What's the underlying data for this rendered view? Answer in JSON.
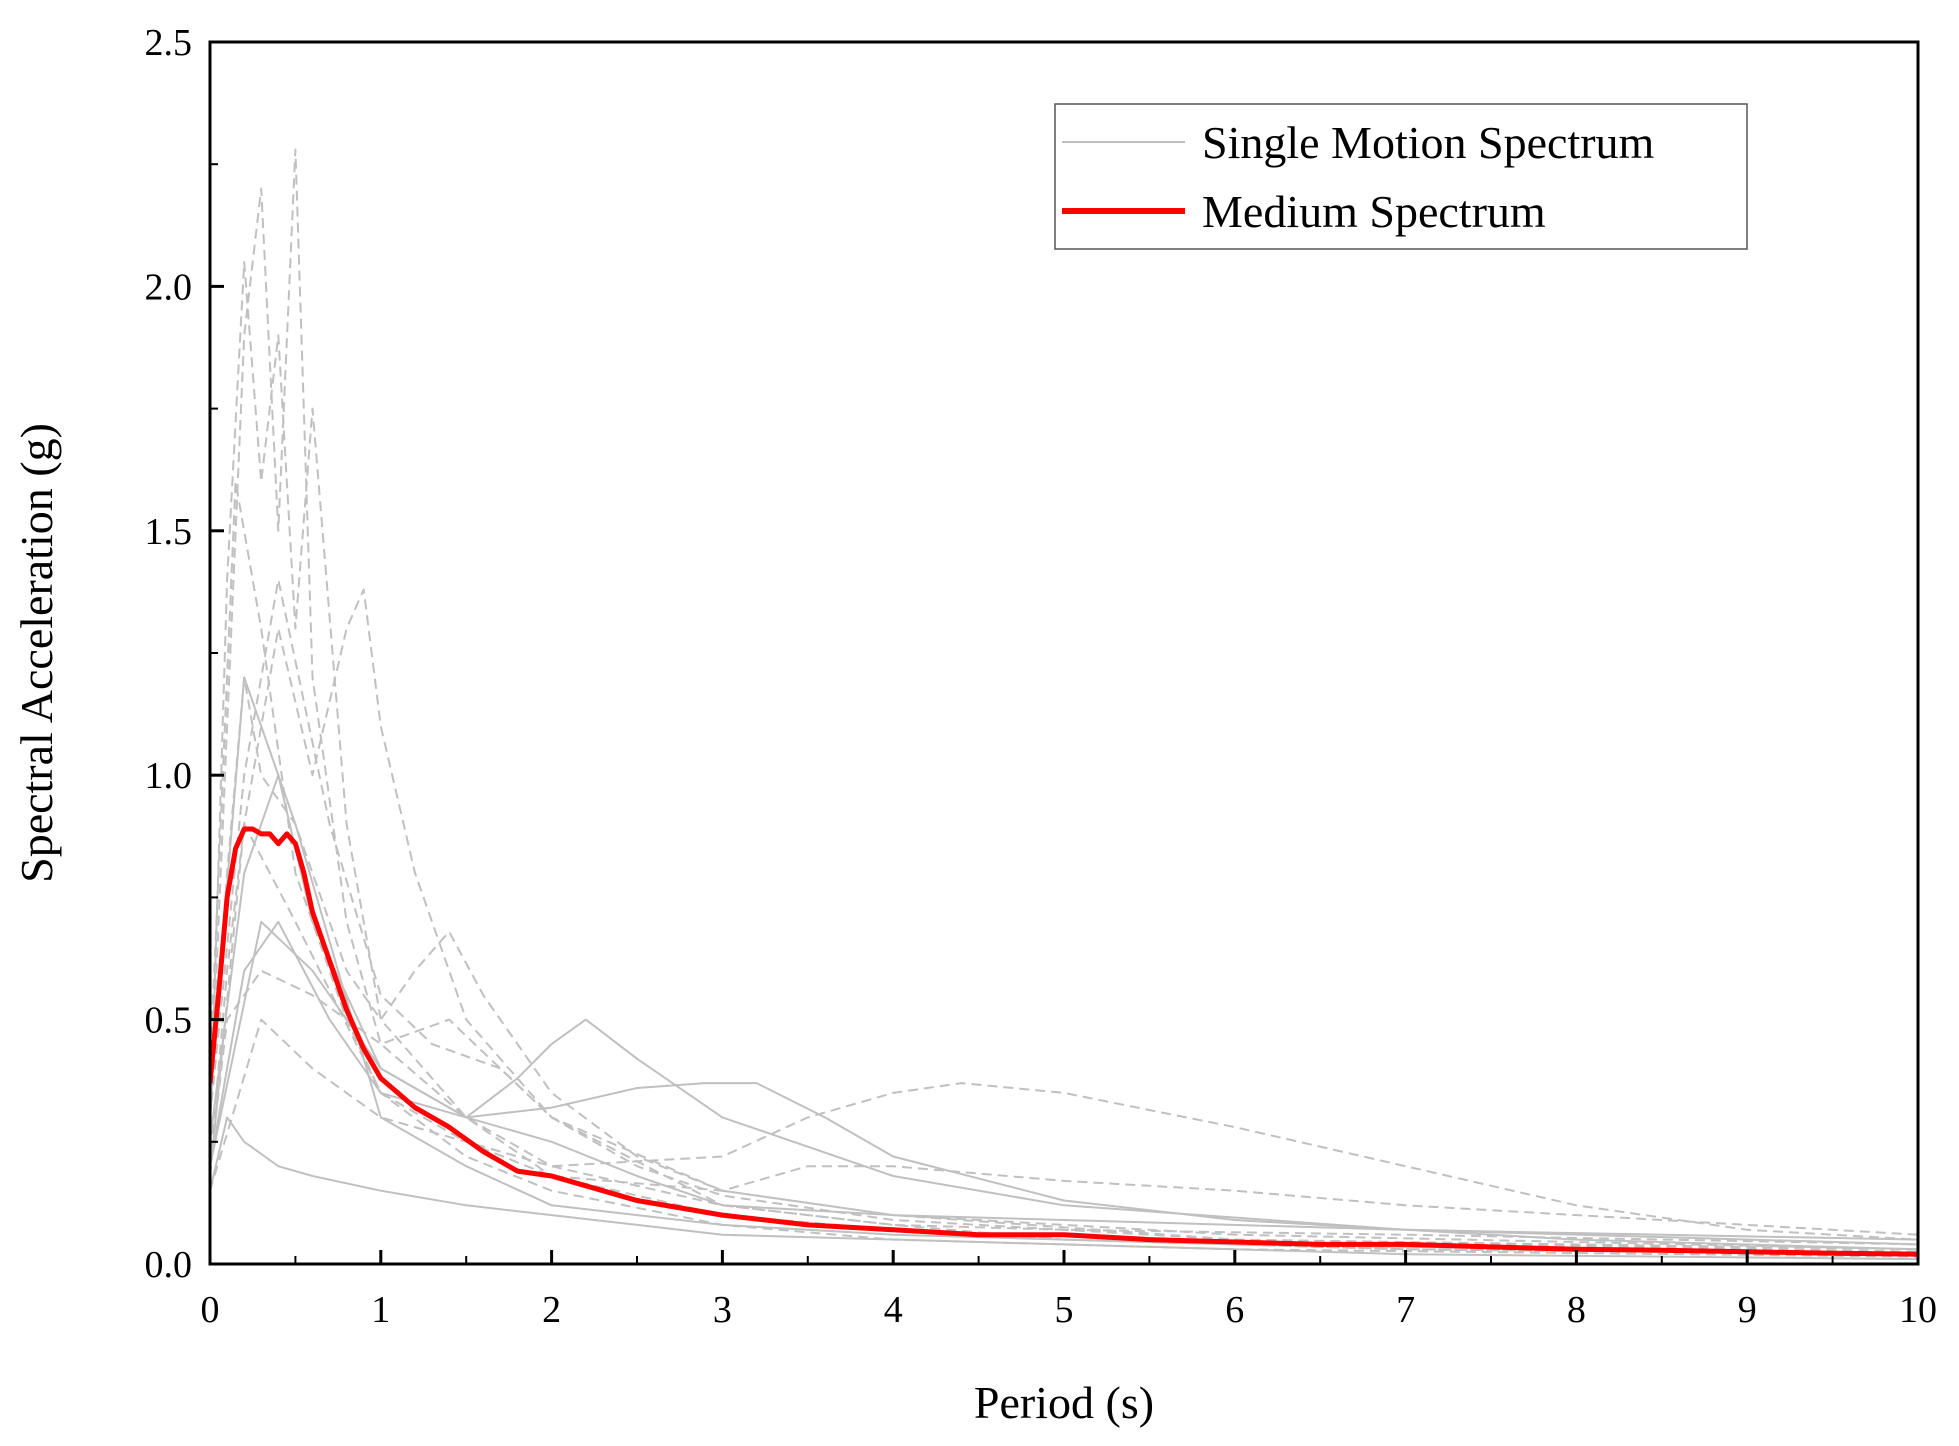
{
  "chart_data": {
    "type": "line",
    "title": "",
    "xlabel": "Period (s)",
    "ylabel": "Spectral Acceleration (g)",
    "xlim": [
      0,
      10
    ],
    "ylim": [
      0,
      2.5
    ],
    "x_ticks": [
      0,
      1,
      2,
      3,
      4,
      5,
      6,
      7,
      8,
      9,
      10
    ],
    "x_tick_labels": [
      "0",
      "1",
      "2",
      "3",
      "4",
      "5",
      "6",
      "7",
      "8",
      "9",
      "10"
    ],
    "y_ticks": [
      0,
      0.5,
      1.0,
      1.5,
      2.0,
      2.5
    ],
    "y_tick_labels": [
      "0.0",
      "0.5",
      "1.0",
      "1.5",
      "2.0",
      "2.5"
    ],
    "grid": false,
    "legend_position": "top-right",
    "legend": [
      {
        "label": "Single Motion Spectrum",
        "color": "#c0c0c0"
      },
      {
        "label": "Medium Spectrum",
        "color": "#ff0000"
      }
    ],
    "series": [
      {
        "name": "Medium Spectrum",
        "color": "#ff0000",
        "style": "solid",
        "x": [
          0,
          0.05,
          0.1,
          0.15,
          0.2,
          0.25,
          0.3,
          0.35,
          0.4,
          0.45,
          0.5,
          0.55,
          0.6,
          0.7,
          0.8,
          0.9,
          1.0,
          1.1,
          1.2,
          1.4,
          1.6,
          1.8,
          2.0,
          2.2,
          2.5,
          3.0,
          3.5,
          4.0,
          4.5,
          5.0,
          5.5,
          6.0,
          6.5,
          7.0,
          7.5,
          8.0,
          8.5,
          9.0,
          9.5,
          10.0
        ],
        "y": [
          0.37,
          0.55,
          0.75,
          0.85,
          0.89,
          0.89,
          0.88,
          0.88,
          0.86,
          0.88,
          0.86,
          0.8,
          0.72,
          0.62,
          0.52,
          0.44,
          0.38,
          0.35,
          0.32,
          0.28,
          0.23,
          0.19,
          0.18,
          0.16,
          0.13,
          0.1,
          0.08,
          0.07,
          0.06,
          0.06,
          0.05,
          0.045,
          0.04,
          0.04,
          0.035,
          0.03,
          0.028,
          0.025,
          0.022,
          0.02
        ]
      },
      {
        "name": "Single Motion Spectrum 1",
        "color": "#c0c0c0",
        "style": "dash",
        "x": [
          0,
          0.1,
          0.2,
          0.3,
          0.4,
          0.5,
          0.6,
          0.8,
          1.0,
          1.5,
          2.0,
          3.0,
          4.0,
          5.0,
          7.0,
          10.0
        ],
        "y": [
          0.3,
          1.1,
          1.9,
          2.2,
          1.5,
          2.28,
          1.2,
          0.7,
          0.45,
          0.3,
          0.2,
          0.12,
          0.08,
          0.05,
          0.03,
          0.02
        ]
      },
      {
        "name": "Single Motion Spectrum 2",
        "color": "#c0c0c0",
        "style": "dash",
        "x": [
          0,
          0.1,
          0.2,
          0.3,
          0.4,
          0.5,
          0.6,
          0.8,
          1.0,
          1.5,
          2.0,
          3.0,
          4.0,
          5.0,
          7.0,
          10.0
        ],
        "y": [
          0.25,
          1.4,
          2.05,
          1.6,
          1.9,
          1.3,
          1.75,
          0.9,
          0.5,
          0.3,
          0.18,
          0.1,
          0.07,
          0.05,
          0.03,
          0.02
        ]
      },
      {
        "name": "Single Motion Spectrum 3",
        "color": "#c0c0c0",
        "style": "dash",
        "x": [
          0,
          0.1,
          0.2,
          0.3,
          0.4,
          0.6,
          0.8,
          0.9,
          1.0,
          1.2,
          1.5,
          2.0,
          3.0,
          4.0,
          6.0,
          10.0
        ],
        "y": [
          0.2,
          0.6,
          0.9,
          1.1,
          1.3,
          1.0,
          1.3,
          1.38,
          1.1,
          0.8,
          0.5,
          0.3,
          0.15,
          0.1,
          0.05,
          0.03
        ]
      },
      {
        "name": "Single Motion Spectrum 4",
        "color": "#c0c0c0",
        "style": "dash",
        "x": [
          0,
          0.1,
          0.2,
          0.3,
          0.5,
          0.8,
          1.0,
          1.2,
          1.4,
          1.6,
          2.0,
          2.5,
          3.0,
          4.0,
          6.0,
          10.0
        ],
        "y": [
          0.3,
          0.8,
          1.2,
          1.0,
          0.9,
          0.6,
          0.5,
          0.6,
          0.68,
          0.55,
          0.35,
          0.22,
          0.15,
          0.1,
          0.06,
          0.03
        ]
      },
      {
        "name": "Single Motion Spectrum 5",
        "color": "#c0c0c0",
        "style": "solid",
        "x": [
          0,
          0.2,
          0.4,
          0.7,
          1.0,
          1.5,
          1.8,
          2.0,
          2.2,
          2.5,
          3.0,
          4.0,
          5.0,
          7.0,
          10.0
        ],
        "y": [
          0.2,
          0.6,
          0.7,
          0.5,
          0.35,
          0.3,
          0.38,
          0.45,
          0.5,
          0.42,
          0.3,
          0.18,
          0.12,
          0.07,
          0.04
        ]
      },
      {
        "name": "Single Motion Spectrum 6",
        "color": "#c0c0c0",
        "style": "dash",
        "x": [
          0,
          0.3,
          0.6,
          1.0,
          1.5,
          2.0,
          3.0,
          3.5,
          4.0,
          4.4,
          5.0,
          6.0,
          7.0,
          8.0,
          9.0,
          10.0
        ],
        "y": [
          0.15,
          0.5,
          0.4,
          0.3,
          0.25,
          0.2,
          0.22,
          0.3,
          0.35,
          0.37,
          0.35,
          0.28,
          0.2,
          0.12,
          0.07,
          0.05
        ]
      },
      {
        "name": "Single Motion Spectrum 7",
        "color": "#c0c0c0",
        "style": "solid",
        "x": [
          0,
          0.3,
          0.6,
          1.0,
          1.5,
          2.0,
          2.5,
          2.9,
          3.2,
          3.6,
          4.0,
          5.0,
          6.0,
          8.0,
          10.0
        ],
        "y": [
          0.2,
          0.7,
          0.6,
          0.4,
          0.3,
          0.32,
          0.36,
          0.37,
          0.37,
          0.3,
          0.22,
          0.13,
          0.09,
          0.05,
          0.03
        ]
      },
      {
        "name": "Single Motion Spectrum 8",
        "color": "#c0c0c0",
        "style": "dash",
        "x": [
          0,
          0.2,
          0.5,
          1.0,
          1.5,
          2.0,
          3.0,
          3.5,
          4.0,
          5.0,
          6.0,
          7.0,
          8.0,
          9.0,
          10.0
        ],
        "y": [
          0.18,
          0.9,
          0.7,
          0.35,
          0.25,
          0.18,
          0.15,
          0.2,
          0.2,
          0.17,
          0.15,
          0.12,
          0.1,
          0.08,
          0.06
        ]
      },
      {
        "name": "Single Motion Spectrum 9",
        "color": "#c0c0c0",
        "style": "solid",
        "x": [
          0,
          0.2,
          0.5,
          1.0,
          1.5,
          2.0,
          3.0,
          4.0,
          5.0,
          6.0,
          8.0,
          10.0
        ],
        "y": [
          0.35,
          1.2,
          0.9,
          0.3,
          0.2,
          0.12,
          0.08,
          0.06,
          0.05,
          0.04,
          0.03,
          0.02
        ]
      },
      {
        "name": "Single Motion Spectrum 10",
        "color": "#c0c0c0",
        "style": "dash",
        "x": [
          0,
          0.15,
          0.3,
          0.5,
          0.8,
          1.0,
          1.5,
          2.0,
          3.0,
          4.0,
          6.0,
          10.0
        ],
        "y": [
          0.4,
          1.6,
          1.3,
          0.8,
          0.5,
          0.35,
          0.22,
          0.15,
          0.08,
          0.05,
          0.03,
          0.015
        ]
      },
      {
        "name": "Single Motion Spectrum 11",
        "color": "#c0c0c0",
        "style": "solid",
        "x": [
          0,
          0.2,
          0.4,
          0.6,
          1.0,
          1.5,
          2.0,
          2.5,
          3.0,
          4.0,
          5.0,
          7.0,
          10.0
        ],
        "y": [
          0.25,
          0.8,
          1.0,
          0.7,
          0.4,
          0.3,
          0.25,
          0.18,
          0.12,
          0.1,
          0.09,
          0.07,
          0.05
        ]
      },
      {
        "name": "Single Motion Spectrum 12",
        "color": "#c0c0c0",
        "style": "dash",
        "x": [
          0,
          0.1,
          0.3,
          0.6,
          1.0,
          1.4,
          2.0,
          3.0,
          4.0,
          5.0,
          7.0,
          10.0
        ],
        "y": [
          0.2,
          0.5,
          0.6,
          0.55,
          0.45,
          0.5,
          0.3,
          0.12,
          0.08,
          0.07,
          0.06,
          0.04
        ]
      },
      {
        "name": "Single Motion Spectrum 13",
        "color": "#c0c0c0",
        "style": "solid",
        "x": [
          0,
          0.1,
          0.2,
          0.4,
          0.6,
          1.0,
          1.5,
          2.0,
          3.0,
          5.0,
          7.0,
          10.0
        ],
        "y": [
          0.15,
          0.3,
          0.25,
          0.2,
          0.18,
          0.15,
          0.12,
          0.1,
          0.06,
          0.04,
          0.02,
          0.01
        ]
      },
      {
        "name": "Single Motion Spectrum 14",
        "color": "#c0c0c0",
        "style": "dash",
        "x": [
          0,
          0.2,
          0.4,
          0.7,
          1.0,
          1.3,
          1.7,
          2.0,
          2.5,
          3.0,
          4.0,
          6.0,
          10.0
        ],
        "y": [
          0.3,
          1.0,
          1.4,
          0.9,
          0.55,
          0.45,
          0.4,
          0.3,
          0.2,
          0.14,
          0.09,
          0.05,
          0.025
        ]
      }
    ]
  }
}
